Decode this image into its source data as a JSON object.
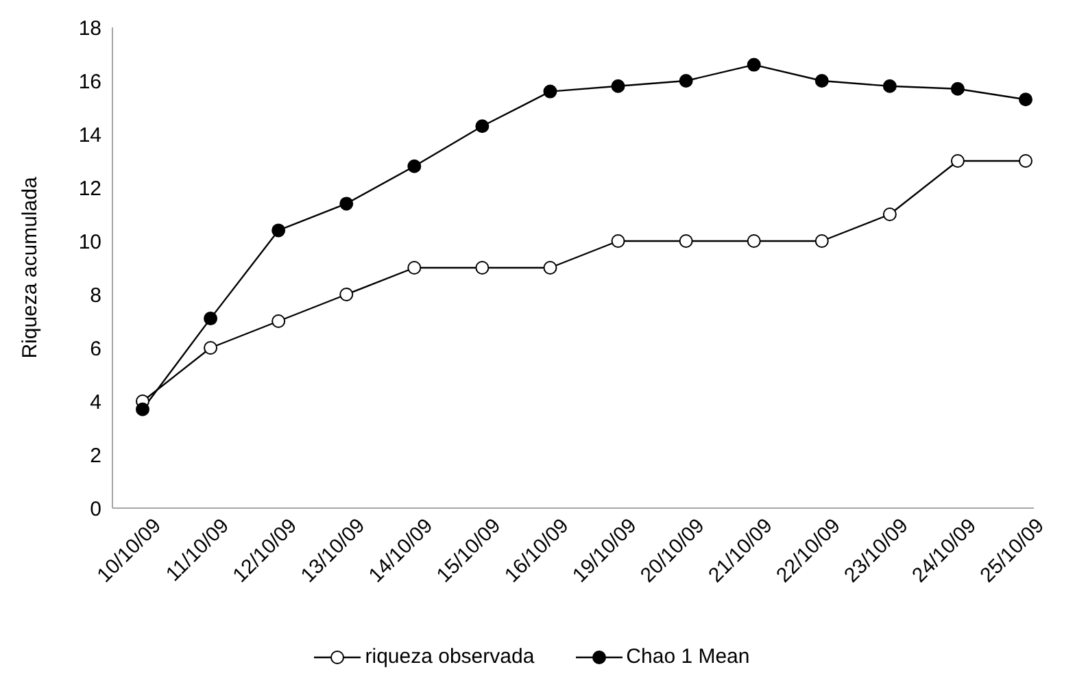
{
  "chart_data": {
    "type": "line",
    "ylabel": "Riqueza  acumulada",
    "categories": [
      "10/10/09",
      "11/10/09",
      "12/10/09",
      "13/10/09",
      "14/10/09",
      "15/10/09",
      "16/10/09",
      "19/10/09",
      "20/10/09",
      "21/10/09",
      "22/10/09",
      "23/10/09",
      "24/10/09",
      "25/10/09"
    ],
    "series": [
      {
        "name": "riqueza observada",
        "color": "#000000",
        "values": [
          4,
          6,
          7,
          8,
          9,
          9,
          9,
          10,
          10,
          10,
          10,
          11,
          13,
          13
        ]
      },
      {
        "name": "Chao 1 Mean",
        "color": "#000000",
        "values": [
          3.7,
          7.1,
          10.4,
          11.4,
          12.8,
          14.3,
          15.6,
          15.8,
          16.0,
          16.6,
          16.0,
          15.8,
          15.7,
          15.3
        ]
      }
    ],
    "ylim": [
      0,
      18
    ],
    "yticks": [
      0,
      2,
      4,
      6,
      8,
      10,
      12,
      14,
      16,
      18
    ],
    "grid": false,
    "legend": "bottom",
    "marker": "circle",
    "line_style": "solid"
  }
}
